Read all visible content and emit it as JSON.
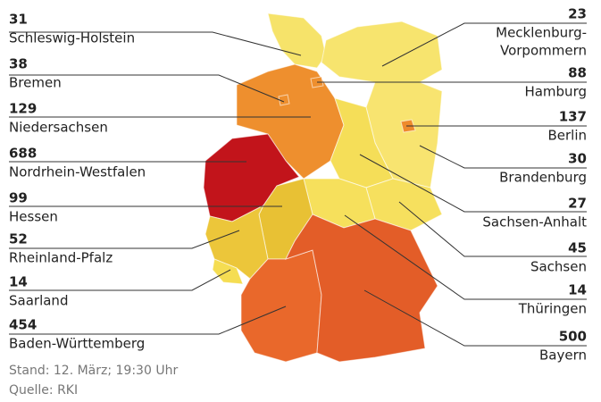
{
  "left_labels": [
    {
      "value": 31,
      "name": "Schleswig-Holstein"
    },
    {
      "value": 38,
      "name": "Bremen"
    },
    {
      "value": 129,
      "name": "Niedersachsen"
    },
    {
      "value": 688,
      "name": "Nordrhein-Westfalen"
    },
    {
      "value": 99,
      "name": "Hessen"
    },
    {
      "value": 52,
      "name": "Rheinland-Pfalz"
    },
    {
      "value": 14,
      "name": "Saarland"
    },
    {
      "value": 454,
      "name": "Baden-Württemberg"
    }
  ],
  "right_labels": [
    {
      "value": 23,
      "name": [
        "Mecklenburg-",
        "Vorpommern"
      ]
    },
    {
      "value": 88,
      "name": [
        "Hamburg"
      ]
    },
    {
      "value": 137,
      "name": [
        "Berlin"
      ]
    },
    {
      "value": 30,
      "name": [
        "Brandenburg"
      ]
    },
    {
      "value": 27,
      "name": [
        "Sachsen-Anhalt"
      ]
    },
    {
      "value": 45,
      "name": [
        "Sachsen"
      ]
    },
    {
      "value": 14,
      "name": [
        "Thüringen"
      ]
    },
    {
      "value": 500,
      "name": [
        "Bayern"
      ]
    }
  ],
  "footer": {
    "date": "Stand: 12. März; 19:30 Uhr",
    "source": "Quelle: RKI"
  }
}
